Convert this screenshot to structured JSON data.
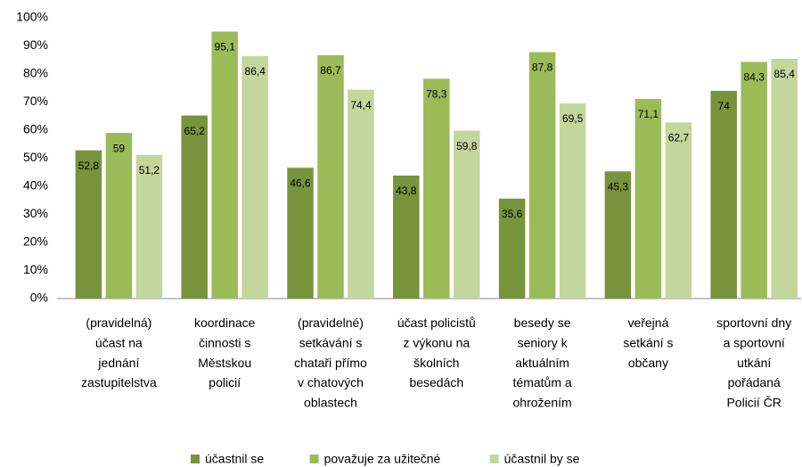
{
  "chart_data": {
    "type": "bar",
    "categories": [
      "(pravidelná)\núčast na\njednání\nzastupitelstva",
      "koordinace\nčinnosti s\nMěstskou\npolicií",
      "(pravidelné)\nsetkávání s\nchataři přímo\nv chatových\noblastech",
      "účast policistů\nz výkonu na\nškolních\nbesedách",
      "besedy se\nseniory k\naktuálním\ntématům a\nohrožením",
      "veřejná\nsetkání s\nobčany",
      "sportovní dny\na sportovní\nutkání\npořádaná\nPolicií ČR"
    ],
    "series": [
      {
        "name": "účastnil se",
        "color": "#77933c",
        "values": [
          52.8,
          65.2,
          46.6,
          43.8,
          35.6,
          45.3,
          74
        ],
        "value_labels": [
          "52,8",
          "65,2",
          "46,6",
          "43,8",
          "35,6",
          "45,3",
          "74"
        ]
      },
      {
        "name": "považuje za užitečné",
        "color": "#9bbb59",
        "values": [
          59,
          95.1,
          86.7,
          78.3,
          87.8,
          71.1,
          84.3
        ],
        "value_labels": [
          "59",
          "95,1",
          "86,7",
          "78,3",
          "87,8",
          "71,1",
          "84,3"
        ]
      },
      {
        "name": "účastnil by se",
        "color": "#c3d69b",
        "values": [
          51.2,
          86.4,
          74.4,
          59.8,
          69.5,
          62.7,
          85.4
        ],
        "value_labels": [
          "51,2",
          "86,4",
          "74,4",
          "59,8",
          "69,5",
          "62,7",
          "85,4"
        ]
      }
    ],
    "ylim": [
      0,
      100
    ],
    "yticks": [
      {
        "value": 0,
        "label": "0%"
      },
      {
        "value": 10,
        "label": "10%"
      },
      {
        "value": 20,
        "label": "20%"
      },
      {
        "value": 30,
        "label": "30%"
      },
      {
        "value": 40,
        "label": "40%"
      },
      {
        "value": 50,
        "label": "50%"
      },
      {
        "value": 60,
        "label": "60%"
      },
      {
        "value": 70,
        "label": "70%"
      },
      {
        "value": 80,
        "label": "80%"
      },
      {
        "value": 90,
        "label": "90%"
      },
      {
        "value": 100,
        "label": "100%"
      }
    ],
    "grid": false,
    "legend": "bottom"
  }
}
